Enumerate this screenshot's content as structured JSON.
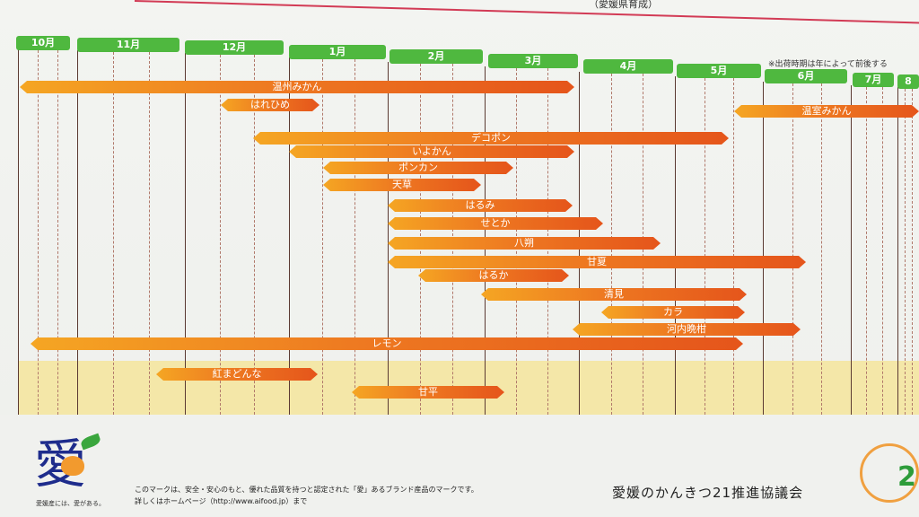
{
  "header": {
    "subtitle": "（愛媛県育成）",
    "note": "※出荷時期は年によって前後する"
  },
  "months": [
    "10月",
    "11月",
    "12月",
    "1月",
    "2月",
    "3月",
    "4月",
    "5月",
    "6月",
    "7月",
    "8"
  ],
  "bars": [
    {
      "label": "温州みかん"
    },
    {
      "label": "はれひめ"
    },
    {
      "label": "温室みかん"
    },
    {
      "label": "デコポン"
    },
    {
      "label": "いよかん"
    },
    {
      "label": "ポンカン"
    },
    {
      "label": "天草"
    },
    {
      "label": "はるみ"
    },
    {
      "label": "せとか"
    },
    {
      "label": "八朔"
    },
    {
      "label": "甘夏"
    },
    {
      "label": "はるか"
    },
    {
      "label": "清見"
    },
    {
      "label": "カラ"
    },
    {
      "label": "河内晩柑"
    },
    {
      "label": "レモン"
    },
    {
      "label": "紅まどんな"
    },
    {
      "label": "甘平"
    }
  ],
  "footer": {
    "logo_char": "愛",
    "logo_caption": "愛媛産には、愛がある。",
    "mark_line1": "このマークは、安全・安心のもと、優れた品質を持つと認定された「愛」あるブランド産品のマークです。",
    "mark_line2": "詳しくはホームページ（http://www.aifood.jp）まで",
    "council": "愛媛のかんきつ21推進協議会",
    "emblem_num": "2"
  }
}
